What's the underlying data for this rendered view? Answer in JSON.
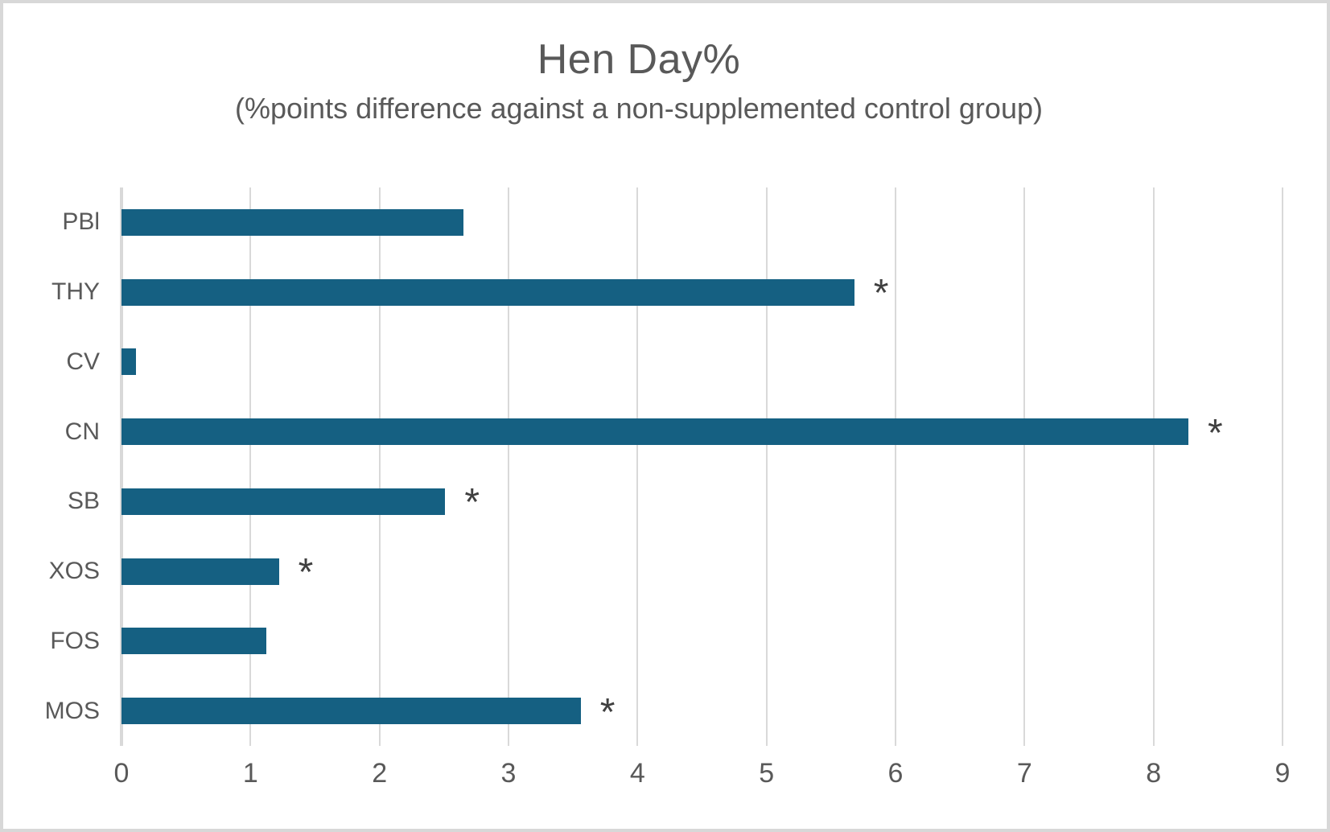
{
  "chart_data": {
    "type": "bar",
    "orientation": "horizontal",
    "title": "Hen Day%",
    "subtitle": "(%points difference against a non-supplemented control group)",
    "categories": [
      "PBl",
      "THY",
      "CV",
      "CN",
      "SB",
      "XOS",
      "FOS",
      "MOS"
    ],
    "values": [
      2.65,
      5.68,
      0.11,
      8.27,
      2.51,
      1.22,
      1.12,
      3.56
    ],
    "significant": [
      false,
      true,
      false,
      true,
      true,
      true,
      false,
      true
    ],
    "significance_symbol": "*",
    "xlabel": "",
    "ylabel": "",
    "xlim": [
      0,
      9
    ],
    "x_ticks": [
      0,
      1,
      2,
      3,
      4,
      5,
      6,
      7,
      8,
      9
    ],
    "grid": "vertical-major",
    "legend": "none",
    "colors": {
      "bar": "#156082",
      "gridline": "#d9d9d9",
      "axis_line": "#d9d9d9",
      "text": "#595959",
      "asterisk": "#404040",
      "background": "#ffffff",
      "frame_border": "#d8d8d8"
    }
  }
}
